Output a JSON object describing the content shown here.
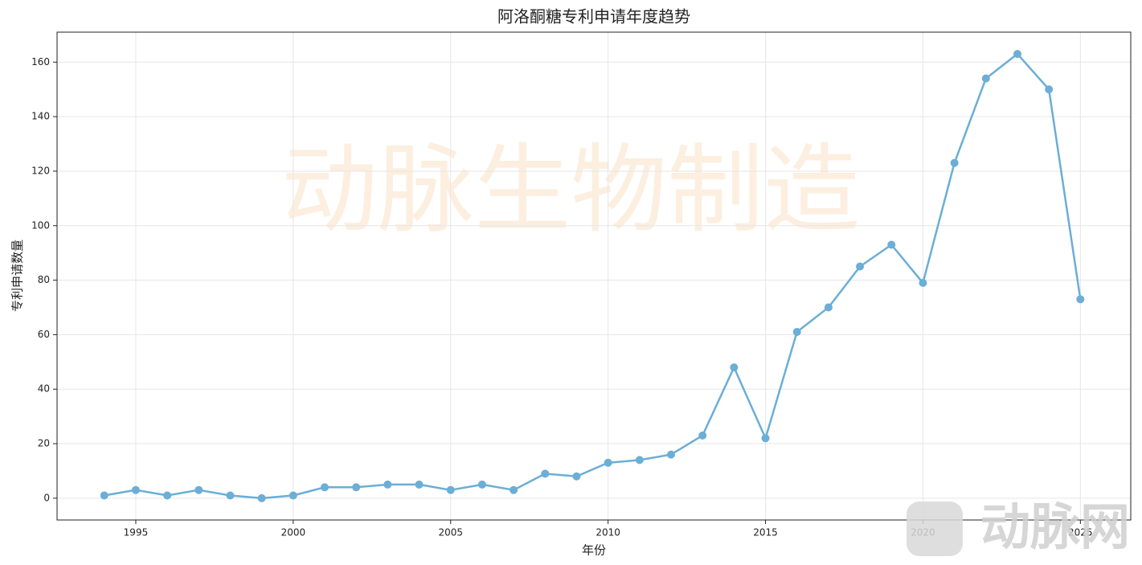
{
  "chart_data": {
    "type": "line",
    "title": "阿洛酮糖专利申请年度趋势",
    "x_label": "年份",
    "y_label": "专利申请数量",
    "x": [
      1994,
      1995,
      1996,
      1997,
      1998,
      1999,
      2000,
      2001,
      2002,
      2003,
      2004,
      2005,
      2006,
      2007,
      2008,
      2009,
      2010,
      2011,
      2012,
      2013,
      2014,
      2015,
      2016,
      2017,
      2018,
      2019,
      2020,
      2021,
      2022,
      2023,
      2024,
      2025
    ],
    "series": [
      {
        "name": "专利申请数量",
        "color": "#6baed6",
        "values": [
          1,
          3,
          1,
          3,
          1,
          0,
          1,
          4,
          4,
          5,
          5,
          3,
          5,
          3,
          9,
          8,
          13,
          14,
          16,
          23,
          48,
          22,
          61,
          70,
          85,
          93,
          79,
          123,
          154,
          163,
          150,
          73
        ]
      }
    ],
    "xlim": [
      1992.5,
      2026.6
    ],
    "xticks": [
      1995,
      2000,
      2005,
      2010,
      2015,
      2020,
      2025
    ],
    "ylim": [
      -8,
      171
    ],
    "yticks": [
      0,
      20,
      40,
      60,
      80,
      100,
      120,
      140,
      160
    ],
    "grid": true,
    "watermark": "动脉生物制造",
    "logo_text": "动脉网"
  }
}
